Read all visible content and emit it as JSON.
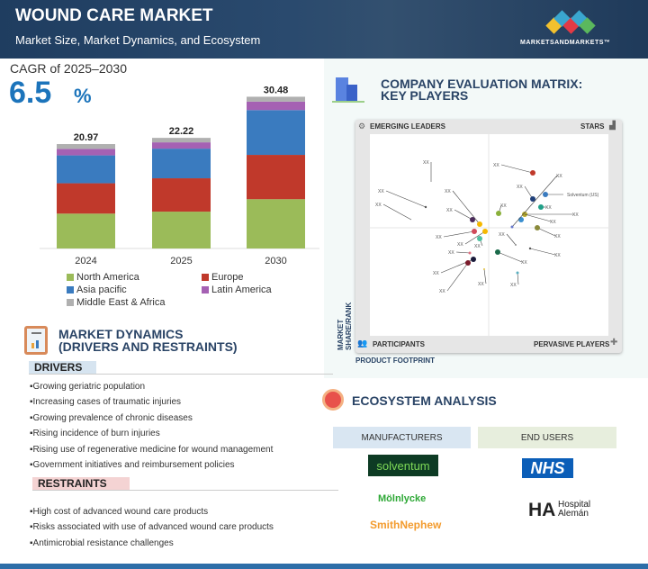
{
  "header": {
    "title": "WOUND CARE MARKET",
    "subtitle": "Market Size, Market Dynamics, and Ecosystem",
    "brand": "MARKETSANDMARKETS™"
  },
  "cagr": {
    "label": "CAGR of 2025–2030",
    "value": "6.5",
    "unit": "%"
  },
  "chart_data": {
    "type": "bar",
    "stacked": true,
    "categories": [
      "2024",
      "2025",
      "2030"
    ],
    "totals": [
      "20.97",
      "22.22",
      "30.48"
    ],
    "series": [
      {
        "name": "North America",
        "color": "#9bbb59",
        "values": [
          7.0,
          7.4,
          9.9
        ]
      },
      {
        "name": "Europe",
        "color": "#c0392b",
        "values": [
          6.1,
          6.7,
          8.9
        ]
      },
      {
        "name": "Asia pacific",
        "color": "#3a7bbf",
        "values": [
          5.6,
          5.95,
          9.0
        ]
      },
      {
        "name": "Latin America",
        "color": "#a561b3",
        "values": [
          1.3,
          1.27,
          1.7
        ]
      },
      {
        "name": "Middle East & Africa",
        "color": "#b0b0b0",
        "values": [
          0.97,
          0.9,
          0.98
        ]
      }
    ],
    "legend": "bottom",
    "grid": false
  },
  "dynamics": {
    "title_line1": "MARKET DYNAMICS",
    "title_line2": "(DRIVERS AND RESTRAINTS)",
    "drivers_label": "DRIVERS",
    "drivers": [
      "Growing geriatric population",
      "Increasing cases of traumatic injuries",
      "Growing prevalence of chronic diseases",
      "Rising incidence of burn injuries",
      "Rising use of regenerative medicine for wound management",
      "Government initiatives and reimbursement policies"
    ],
    "restraints_label": "RESTRAINTS",
    "restraints": [
      "High cost of advanced wound care products",
      "Risks associated with use of advanced wound care products",
      "Antimicrobial resistance challenges"
    ]
  },
  "matrix": {
    "title_line1": "COMPANY EVALUATION MATRIX:",
    "title_line2": "KEY PLAYERS",
    "quadrants": {
      "tl": "EMERGING LEADERS",
      "tr": "STARS",
      "bl": "PARTICIPANTS",
      "br": "PERVASIVE PLAYERS"
    },
    "y_axis": "MARKET SHARE/RANK",
    "x_axis": "PRODUCT FOOTPRINT",
    "named_player": "Solventum (US)",
    "placeholder": "XX"
  },
  "ecosystem": {
    "title": "ECOSYSTEM ANALYSIS",
    "manufacturers_label": "MANUFACTURERS",
    "end_users_label": "END USERS",
    "manufacturers": [
      "solventum",
      "Mölnlycke",
      "SmithNephew"
    ],
    "end_users": [
      "NHS",
      "Hospital Alemán"
    ]
  }
}
